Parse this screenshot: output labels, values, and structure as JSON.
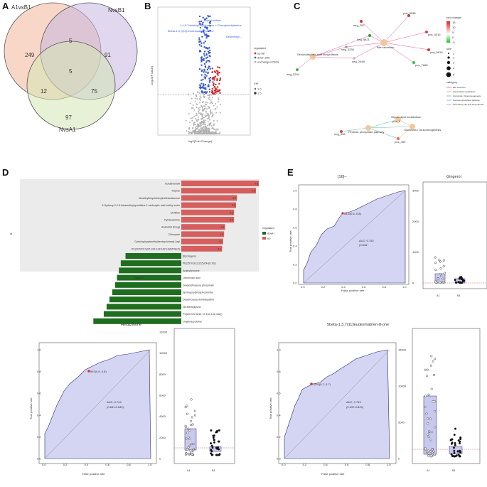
{
  "panels": {
    "A": {
      "letter": "A",
      "venn": {
        "labels": [
          "A1vsB1",
          "NvsB1",
          "NvsA1"
        ],
        "counts": {
          "a_only": "249",
          "b_only": "91",
          "c_only": "97",
          "ab": "5",
          "abc": "5",
          "ac": "12",
          "bc": "75"
        },
        "colors": [
          "#f4b69a",
          "#c9b6e0",
          "#d4e6b5"
        ]
      }
    },
    "B": {
      "letter": "B",
      "chart_data": {
        "type": "scatter",
        "title": "",
        "xlabel": "log2(Fold Change)",
        "ylabel": "-log10(P value)",
        "annotations": [
          "Glycyl sulfate",
          "1,4,8-Trimethylnaphthalene + Phenylacetylamine",
          "5beta-1,3,7(11)-Eudesmatrien-8-one",
          "Desmethyl..."
        ],
        "legend": {
          "title": "regulated",
          "entries": [
            "up 88",
            "down 209",
            "unchanged 2364"
          ],
          "vip_title": "VIP",
          "vip_entries": [
            "1.0",
            "1.5"
          ]
        },
        "colors": {
          "up": "#d62728",
          "down": "#3a5bd6",
          "nonsig": "#b0b0b0"
        }
      }
    },
    "C": {
      "letter": "C",
      "nodes": [
        "neg_252",
        "pos_5058",
        "pos_4316",
        "neg_5821",
        "neg_3236",
        "Bile secretion",
        "pos_5818",
        "pos_7668",
        "neg_3254",
        "Secondary bile acid biosynthesis",
        "neg_2648",
        "pos_3108",
        "Glycerolipid metabolism",
        "neg_398",
        "Pentose phosphate pathway",
        "Glycolysis / Gluconeogenesis",
        "pos_459",
        "pos_1"
      ],
      "legend": {
        "fold_title": "fold change",
        "fold_values": [
          "15",
          "10",
          "5",
          "0",
          "-5"
        ],
        "size_title": "size",
        "size_values": [
          "1",
          "2",
          "3",
          "4",
          "5"
        ],
        "category_title": "category",
        "categories": [
          "Bile secretion",
          "Glycerolipid metabolism",
          "Glycolysis / Gluconeogenesis",
          "Pentose phosphate pathway",
          "Secondary bile acid biosynthesis"
        ]
      }
    },
    "D": {
      "letter": "D",
      "chart_data": {
        "type": "bar",
        "xlabel": "log2FC",
        "ylabel": "id",
        "legend": {
          "title": "regulated",
          "entries": [
            "down",
            "up"
          ]
        },
        "colors": {
          "up": "#d55e5e",
          "down": "#1f6e1f"
        },
        "up": [
          {
            "name": "Isoxathionefit",
            "value": 7.8
          },
          {
            "name": "Tropine",
            "value": 7.5
          },
          {
            "name": "Dimethylbicyclohexylmethanalamine",
            "value": 5.6
          },
          {
            "name": "3-Hydroxy-2,2,5-tetramethylpyrrolidine-1-carboxylic acid methyl ester",
            "value": 5.5
          },
          {
            "name": "Urolithin",
            "value": 5.3
          },
          {
            "name": "Pyridoxamine",
            "value": 5.3
          },
          {
            "name": "Anabolist (Drug)",
            "value": 4.4
          },
          {
            "name": "Chloroprin",
            "value": 4.3
          },
          {
            "name": "Cyclolophyxylmethyldenicyclohexyl-4ayl",
            "value": 4.2
          },
          {
            "name": "PC(20:5/22:1(9Z,10Z,13Z,16Z,19Z)/PGE2)",
            "value": 4.1
          }
        ],
        "up_labels": [
          "7.8",
          "7.5",
          "5.6",
          "5.5",
          "5.3",
          "5.3",
          "4.4",
          "4.3",
          "4.2",
          "4.1"
        ],
        "down": [
          {
            "name": "[6]-Gingerol",
            "value": -5.9
          },
          {
            "name": "PE(15:0/18:1(12Z)/OH(9,10))",
            "value": -6.4
          },
          {
            "name": "Arginyltyrosine",
            "value": -6.6
          },
          {
            "name": "Lithocholic acid",
            "value": -6.8
          },
          {
            "name": "Dexamethasone phosphate",
            "value": -7.0
          },
          {
            "name": "Sphingosylphosphocholine",
            "value": -7.3
          },
          {
            "name": "Desethoxyacetonitrilepafine",
            "value": -7.6
          },
          {
            "name": "N6-Methyllysine",
            "value": -7.9
          },
          {
            "name": "PS(20:2/22:6(4Z,7Z,10Z,13Z,16Z))",
            "value": -8.2
          },
          {
            "name": "Oxypinacycloline",
            "value": -9.3
          }
        ]
      }
    },
    "E": {
      "letter": "E",
      "roc_top": {
        "title": "[16]--",
        "point_label": "54.6(0.6, 0.8)",
        "auc": "AUC: 0.752",
        "ci": "(0.645~",
        "xlabel": "False positive rate",
        "ylabel": "True positive rate",
        "ticks": [
          "0.0",
          "0.2",
          "0.4",
          "0.6",
          "0.8",
          "1.0"
        ]
      },
      "box_top": {
        "title": "Gingerol",
        "yticks": [
          "0",
          "1000",
          "2000",
          "3000"
        ],
        "groups": [
          "A1",
          "B1"
        ]
      },
      "roc_left": {
        "title": "Hexazinone",
        "point_label": "997(0.6, 0.8)",
        "auc": "AUC: 0.744",
        "ci": "(0.631-0.842)",
        "xlabel": "False positive rate",
        "ylabel": "True positive rate",
        "ticks": [
          "0.0",
          "0.2",
          "0.4",
          "0.6",
          "0.8",
          "1.0"
        ]
      },
      "box_left": {
        "yticks": [
          "0",
          "2000",
          "4000",
          "6000",
          "8000",
          "10000",
          "12000"
        ],
        "groups": [
          "A1",
          "B1"
        ]
      },
      "roc_right": {
        "title": "5beta-1,3,7(11)Eudesmatrien-8-one",
        "point_label": "1920(0.7, 0.7)",
        "auc": "AUC: 0.749",
        "ci": "(0.637-0.843)",
        "xlabel": "False positive rate",
        "ylabel": "True positive rate",
        "ticks": [
          "0.0",
          "0.2",
          "0.4",
          "0.6",
          "0.8",
          "1.0"
        ]
      },
      "box_right": {
        "yticks": [
          "0",
          "5000",
          "10000",
          "15000"
        ],
        "groups": [
          "A1",
          "B1"
        ]
      }
    }
  }
}
